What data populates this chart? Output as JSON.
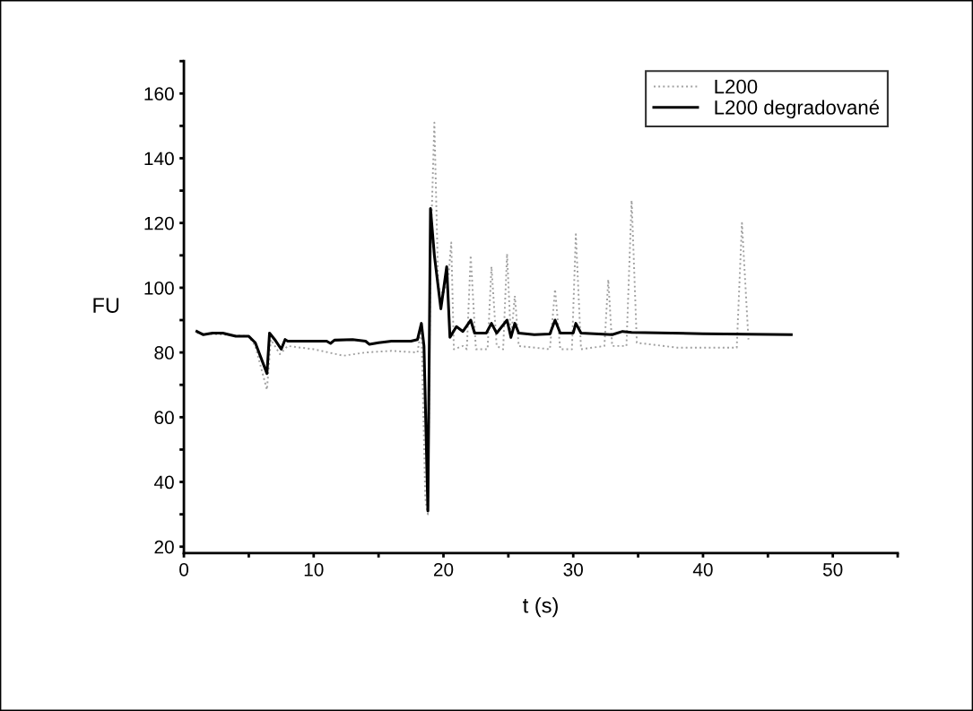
{
  "chart_data": {
    "type": "line",
    "xlabel": "t (s)",
    "ylabel": "FU",
    "xlim": [
      0,
      55
    ],
    "ylim": [
      18,
      170
    ],
    "xticks": [
      0,
      {
        "value": 5,
        "label": null
      },
      10,
      {
        "value": 15,
        "label": null
      },
      20,
      {
        "value": 25,
        "label": null
      },
      30,
      {
        "value": 35,
        "label": null
      },
      40,
      {
        "value": 45,
        "label": null
      },
      50,
      {
        "value": 55,
        "label": null
      }
    ],
    "yticks": [
      20,
      {
        "value": 30,
        "label": null
      },
      40,
      {
        "value": 50,
        "label": null
      },
      60,
      {
        "value": 70,
        "label": null
      },
      80,
      {
        "value": 90,
        "label": null
      },
      100,
      {
        "value": 110,
        "label": null
      },
      120,
      {
        "value": 130,
        "label": null
      },
      140,
      {
        "value": 150,
        "label": null
      },
      160,
      {
        "value": 170,
        "label": null
      }
    ],
    "grid": false,
    "legend": "top right",
    "series": [
      {
        "name": "L200",
        "color": "#a0a0a0",
        "line_style": "dotted",
        "x": [
          1,
          5,
          5.5,
          6.4,
          6.7,
          7.4,
          8,
          10,
          12.3,
          14,
          16,
          18,
          18.3,
          18.6,
          18.8,
          19.0,
          19.3,
          19.6,
          20,
          20.4,
          20.6,
          20.8,
          21.5,
          21.8,
          22.1,
          22.5,
          23.4,
          23.7,
          24.1,
          24.6,
          24.9,
          25.2,
          25.5,
          25.8,
          28.2,
          28.6,
          29,
          29.9,
          30.2,
          30.6,
          32.4,
          32.7,
          33,
          34.1,
          34.5,
          34.9,
          38,
          42.6,
          43.0,
          43.5
        ],
        "values": [
          86,
          85,
          82,
          68.5,
          84,
          79.5,
          82,
          81,
          79,
          80,
          80.5,
          80,
          88,
          35,
          30,
          110,
          151,
          100,
          98,
          104,
          114,
          81,
          82,
          81,
          110,
          81,
          81,
          106.5,
          82,
          81,
          110.5,
          84,
          97.5,
          82,
          81,
          99.5,
          81,
          81,
          116.5,
          81,
          82,
          102.5,
          82,
          82,
          127,
          83,
          81.5,
          81.5,
          120,
          84
        ]
      },
      {
        "name": "L200 degradované",
        "color": "#000000",
        "line_style": "solid",
        "x": [
          1,
          1.5,
          2.2,
          3,
          4,
          5,
          5.5,
          6.4,
          6.6,
          7,
          7.5,
          7.8,
          8,
          10,
          11,
          11.3,
          11.6,
          13,
          14,
          14.3,
          15,
          16,
          17.5,
          18,
          18.3,
          18.5,
          18.8,
          19.0,
          19.3,
          19.8,
          20.25,
          20.5,
          21,
          21.5,
          22.1,
          22.4,
          23.3,
          23.7,
          24.1,
          24.9,
          25.2,
          25.5,
          25.8,
          27,
          28.2,
          28.6,
          29,
          30,
          30.2,
          30.6,
          33,
          33.8,
          34.5,
          40,
          46.8
        ],
        "values": [
          86.5,
          85.5,
          86,
          86,
          85,
          85,
          83,
          73.5,
          86,
          84,
          81,
          84,
          83.5,
          83.5,
          83.5,
          82.8,
          83.8,
          84,
          83.5,
          82.5,
          83,
          83.5,
          83.5,
          84,
          89,
          82,
          31,
          124.5,
          110,
          93.5,
          106.5,
          84.7,
          88,
          86.5,
          90,
          86,
          86,
          89,
          86,
          90,
          84.7,
          89,
          86,
          85.5,
          85.7,
          90,
          86,
          86,
          89,
          86,
          85.5,
          86.5,
          86.2,
          85.8,
          85.5
        ]
      }
    ]
  }
}
